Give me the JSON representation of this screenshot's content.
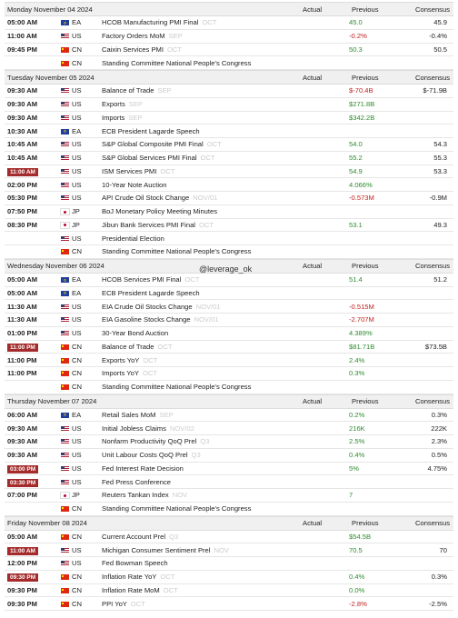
{
  "columns": [
    "Actual",
    "Previous",
    "Consensus"
  ],
  "watermark": "@leverage_ok",
  "sections": [
    {
      "date": "Monday November 04 2024",
      "rows": [
        {
          "time": "05:00 AM",
          "country": "EA",
          "event": "HCOB Manufacturing PMI Final",
          "period": "OCT",
          "previous": "45.0",
          "previous_color": "green",
          "consensus": "45.9"
        },
        {
          "time": "11:00 AM",
          "country": "US",
          "event": "Factory Orders MoM",
          "period": "SEP",
          "previous": "-0.2%",
          "previous_color": "red",
          "consensus": "-0.4%"
        },
        {
          "time": "09:45 PM",
          "country": "CN",
          "event": "Caixin Services PMI",
          "period": "OCT",
          "previous": "50.3",
          "previous_color": "green",
          "consensus": "50.5"
        },
        {
          "country": "CN",
          "event": "Standing Committee National People's Congress"
        }
      ]
    },
    {
      "date": "Tuesday November 05 2024",
      "rows": [
        {
          "time": "09:30 AM",
          "country": "US",
          "event": "Balance of Trade",
          "period": "SEP",
          "previous": "$-70.4B",
          "previous_color": "red",
          "consensus": "$-71.9B"
        },
        {
          "time": "09:30 AM",
          "country": "US",
          "event": "Exports",
          "period": "SEP",
          "previous": "$271.8B",
          "previous_color": "green"
        },
        {
          "time": "09:30 AM",
          "country": "US",
          "event": "Imports",
          "period": "SEP",
          "previous": "$342.2B",
          "previous_color": "green"
        },
        {
          "time": "10:30 AM",
          "country": "EA",
          "event": "ECB President Lagarde Speech"
        },
        {
          "time": "10:45 AM",
          "country": "US",
          "event": "S&P Global Composite PMI Final",
          "period": "OCT",
          "previous": "54.0",
          "previous_color": "green",
          "consensus": "54.3"
        },
        {
          "time": "10:45 AM",
          "country": "US",
          "event": "S&P Global Services PMI Final",
          "period": "OCT",
          "previous": "55.2",
          "previous_color": "green",
          "consensus": "55.3"
        },
        {
          "time": "11:00 AM",
          "highlight": true,
          "country": "US",
          "event": "ISM Services PMI",
          "period": "OCT",
          "previous": "54.9",
          "previous_color": "green",
          "consensus": "53.3"
        },
        {
          "time": "02:00 PM",
          "country": "US",
          "event": "10-Year Note Auction",
          "previous": "4.066%",
          "previous_color": "green"
        },
        {
          "time": "05:30 PM",
          "country": "US",
          "event": "API Crude Oil Stock Change",
          "period": "NOV/01",
          "previous": "-0.573M",
          "previous_color": "red",
          "consensus": "-0.9M"
        },
        {
          "time": "07:50 PM",
          "country": "JP",
          "event": "BoJ Monetary Policy Meeting Minutes"
        },
        {
          "time": "08:30 PM",
          "country": "JP",
          "event": "Jibun Bank Services PMI Final",
          "period": "OCT",
          "previous": "53.1",
          "previous_color": "green",
          "consensus": "49.3"
        },
        {
          "country": "US",
          "event": "Presidential Election"
        },
        {
          "country": "CN",
          "event": "Standing Committee National People's Congress"
        }
      ]
    },
    {
      "date": "Wednesday November 06 2024",
      "rows": [
        {
          "time": "05:00 AM",
          "country": "EA",
          "event": "HCOB Services PMI Final",
          "period": "OCT",
          "previous": "51.4",
          "previous_color": "green",
          "consensus": "51.2"
        },
        {
          "time": "05:00 AM",
          "country": "EA",
          "event": "ECB President Lagarde Speech"
        },
        {
          "time": "11:30 AM",
          "country": "US",
          "event": "EIA Crude Oil Stocks Change",
          "period": "NOV/01",
          "previous": "-0.515M",
          "previous_color": "red"
        },
        {
          "time": "11:30 AM",
          "country": "US",
          "event": "EIA Gasoline Stocks Change",
          "period": "NOV/01",
          "previous": "-2.707M",
          "previous_color": "red"
        },
        {
          "time": "01:00 PM",
          "country": "US",
          "event": "30-Year Bond Auction",
          "previous": "4.389%",
          "previous_color": "green"
        },
        {
          "time": "11:00 PM",
          "highlight": true,
          "country": "CN",
          "event": "Balance of Trade",
          "period": "OCT",
          "previous": "$81.71B",
          "previous_color": "green",
          "consensus": "$73.5B"
        },
        {
          "time": "11:00 PM",
          "country": "CN",
          "event": "Exports YoY",
          "period": "OCT",
          "previous": "2.4%",
          "previous_color": "green"
        },
        {
          "time": "11:00 PM",
          "country": "CN",
          "event": "Imports YoY",
          "period": "OCT",
          "previous": "0.3%",
          "previous_color": "green"
        },
        {
          "country": "CN",
          "event": "Standing Committee National People's Congress"
        }
      ]
    },
    {
      "date": "Thursday November 07 2024",
      "rows": [
        {
          "time": "06:00 AM",
          "country": "EA",
          "event": "Retail Sales MoM",
          "period": "SEP",
          "previous": "0.2%",
          "previous_color": "green",
          "consensus": "0.3%"
        },
        {
          "time": "09:30 AM",
          "country": "US",
          "event": "Initial Jobless Claims",
          "period": "NOV/02",
          "previous": "216K",
          "previous_color": "green",
          "consensus": "222K"
        },
        {
          "time": "09:30 AM",
          "country": "US",
          "event": "Nonfarm Productivity QoQ Prel",
          "period": "Q3",
          "previous": "2.5%",
          "previous_color": "green",
          "consensus": "2.3%"
        },
        {
          "time": "09:30 AM",
          "country": "US",
          "event": "Unit Labour Costs QoQ Prel",
          "period": "Q3",
          "previous": "0.4%",
          "previous_color": "green",
          "consensus": "0.5%"
        },
        {
          "time": "03:00 PM",
          "highlight": true,
          "country": "US",
          "event": "Fed Interest Rate Decision",
          "previous": "5%",
          "previous_color": "green",
          "consensus": "4.75%"
        },
        {
          "time": "03:30 PM",
          "highlight": true,
          "country": "US",
          "event": "Fed Press Conference"
        },
        {
          "time": "07:00 PM",
          "country": "JP",
          "event": "Reuters Tankan Index",
          "period": "NOV",
          "previous": "7",
          "previous_color": "green"
        },
        {
          "country": "CN",
          "event": "Standing Committee National People's Congress"
        }
      ]
    },
    {
      "date": "Friday November 08 2024",
      "rows": [
        {
          "time": "05:00 AM",
          "country": "CN",
          "event": "Current Account Prel",
          "period": "Q3",
          "previous": "$54.5B",
          "previous_color": "green"
        },
        {
          "time": "11:00 AM",
          "highlight": true,
          "country": "US",
          "event": "Michigan Consumer Sentiment Prel",
          "period": "NOV",
          "previous": "70.5",
          "previous_color": "green",
          "consensus": "70"
        },
        {
          "time": "12:00 PM",
          "country": "US",
          "event": "Fed Bowman Speech"
        },
        {
          "time": "09:30 PM",
          "highlight": true,
          "country": "CN",
          "event": "Inflation Rate YoY",
          "period": "OCT",
          "previous": "0.4%",
          "previous_color": "green",
          "consensus": "0.3%"
        },
        {
          "time": "09:30 PM",
          "country": "CN",
          "event": "Inflation Rate MoM",
          "period": "OCT",
          "previous": "0.0%",
          "previous_color": "green"
        },
        {
          "time": "09:30 PM",
          "country": "CN",
          "event": "PPI YoY",
          "period": "OCT",
          "previous": "-2.8%",
          "previous_color": "red",
          "consensus": "-2.5%"
        }
      ]
    }
  ]
}
